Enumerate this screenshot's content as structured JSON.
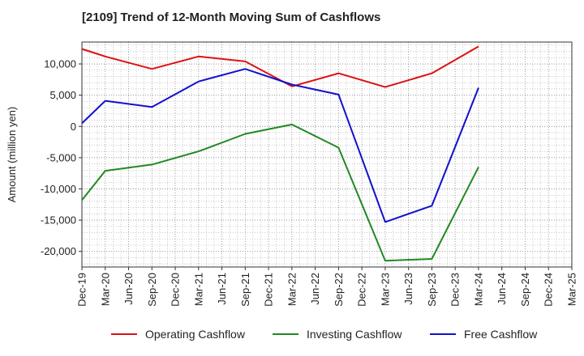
{
  "chart_data": {
    "type": "line",
    "title": "[2109]  Trend of 12-Month Moving Sum of Cashflows",
    "ylabel": "Amount (million yen)",
    "xlabel": "",
    "ylim": [
      -22500,
      13500
    ],
    "yticks": [
      10000,
      5000,
      0,
      -5000,
      -10000,
      -15000,
      -20000
    ],
    "ytick_labels": [
      "10,000",
      "5,000",
      "0",
      "-5,000",
      "-10,000",
      "-15,000",
      "-20,000"
    ],
    "categories": [
      "Dec-19",
      "Mar-20",
      "Jun-20",
      "Sep-20",
      "Dec-20",
      "Mar-21",
      "Jun-21",
      "Sep-21",
      "Dec-21",
      "Mar-22",
      "Jun-22",
      "Sep-22",
      "Dec-22",
      "Mar-23",
      "Jun-23",
      "Sep-23",
      "Dec-23",
      "Mar-24",
      "Jun-24",
      "Sep-24",
      "Dec-24",
      "Mar-25"
    ],
    "grid": true,
    "legend_position": "bottom",
    "series": [
      {
        "name": "Operating Cashflow",
        "color": "#dd1111",
        "values": [
          12400,
          11200,
          null,
          9200,
          null,
          11200,
          null,
          10400,
          null,
          6400,
          null,
          8500,
          null,
          6300,
          null,
          8500,
          null,
          12800,
          null,
          null,
          null,
          null
        ]
      },
      {
        "name": "Investing Cashflow",
        "color": "#228822",
        "values": [
          -11800,
          -7100,
          null,
          -6100,
          null,
          -4000,
          null,
          -1200,
          null,
          300,
          null,
          -3400,
          null,
          -21500,
          null,
          -21200,
          null,
          -6500,
          null,
          null,
          null,
          null
        ]
      },
      {
        "name": "Free Cashflow",
        "color": "#1111cc",
        "values": [
          500,
          4100,
          null,
          3100,
          null,
          7200,
          null,
          9200,
          null,
          6700,
          null,
          5100,
          null,
          -15300,
          null,
          -12700,
          null,
          6200,
          null,
          null,
          null,
          null
        ]
      }
    ]
  }
}
